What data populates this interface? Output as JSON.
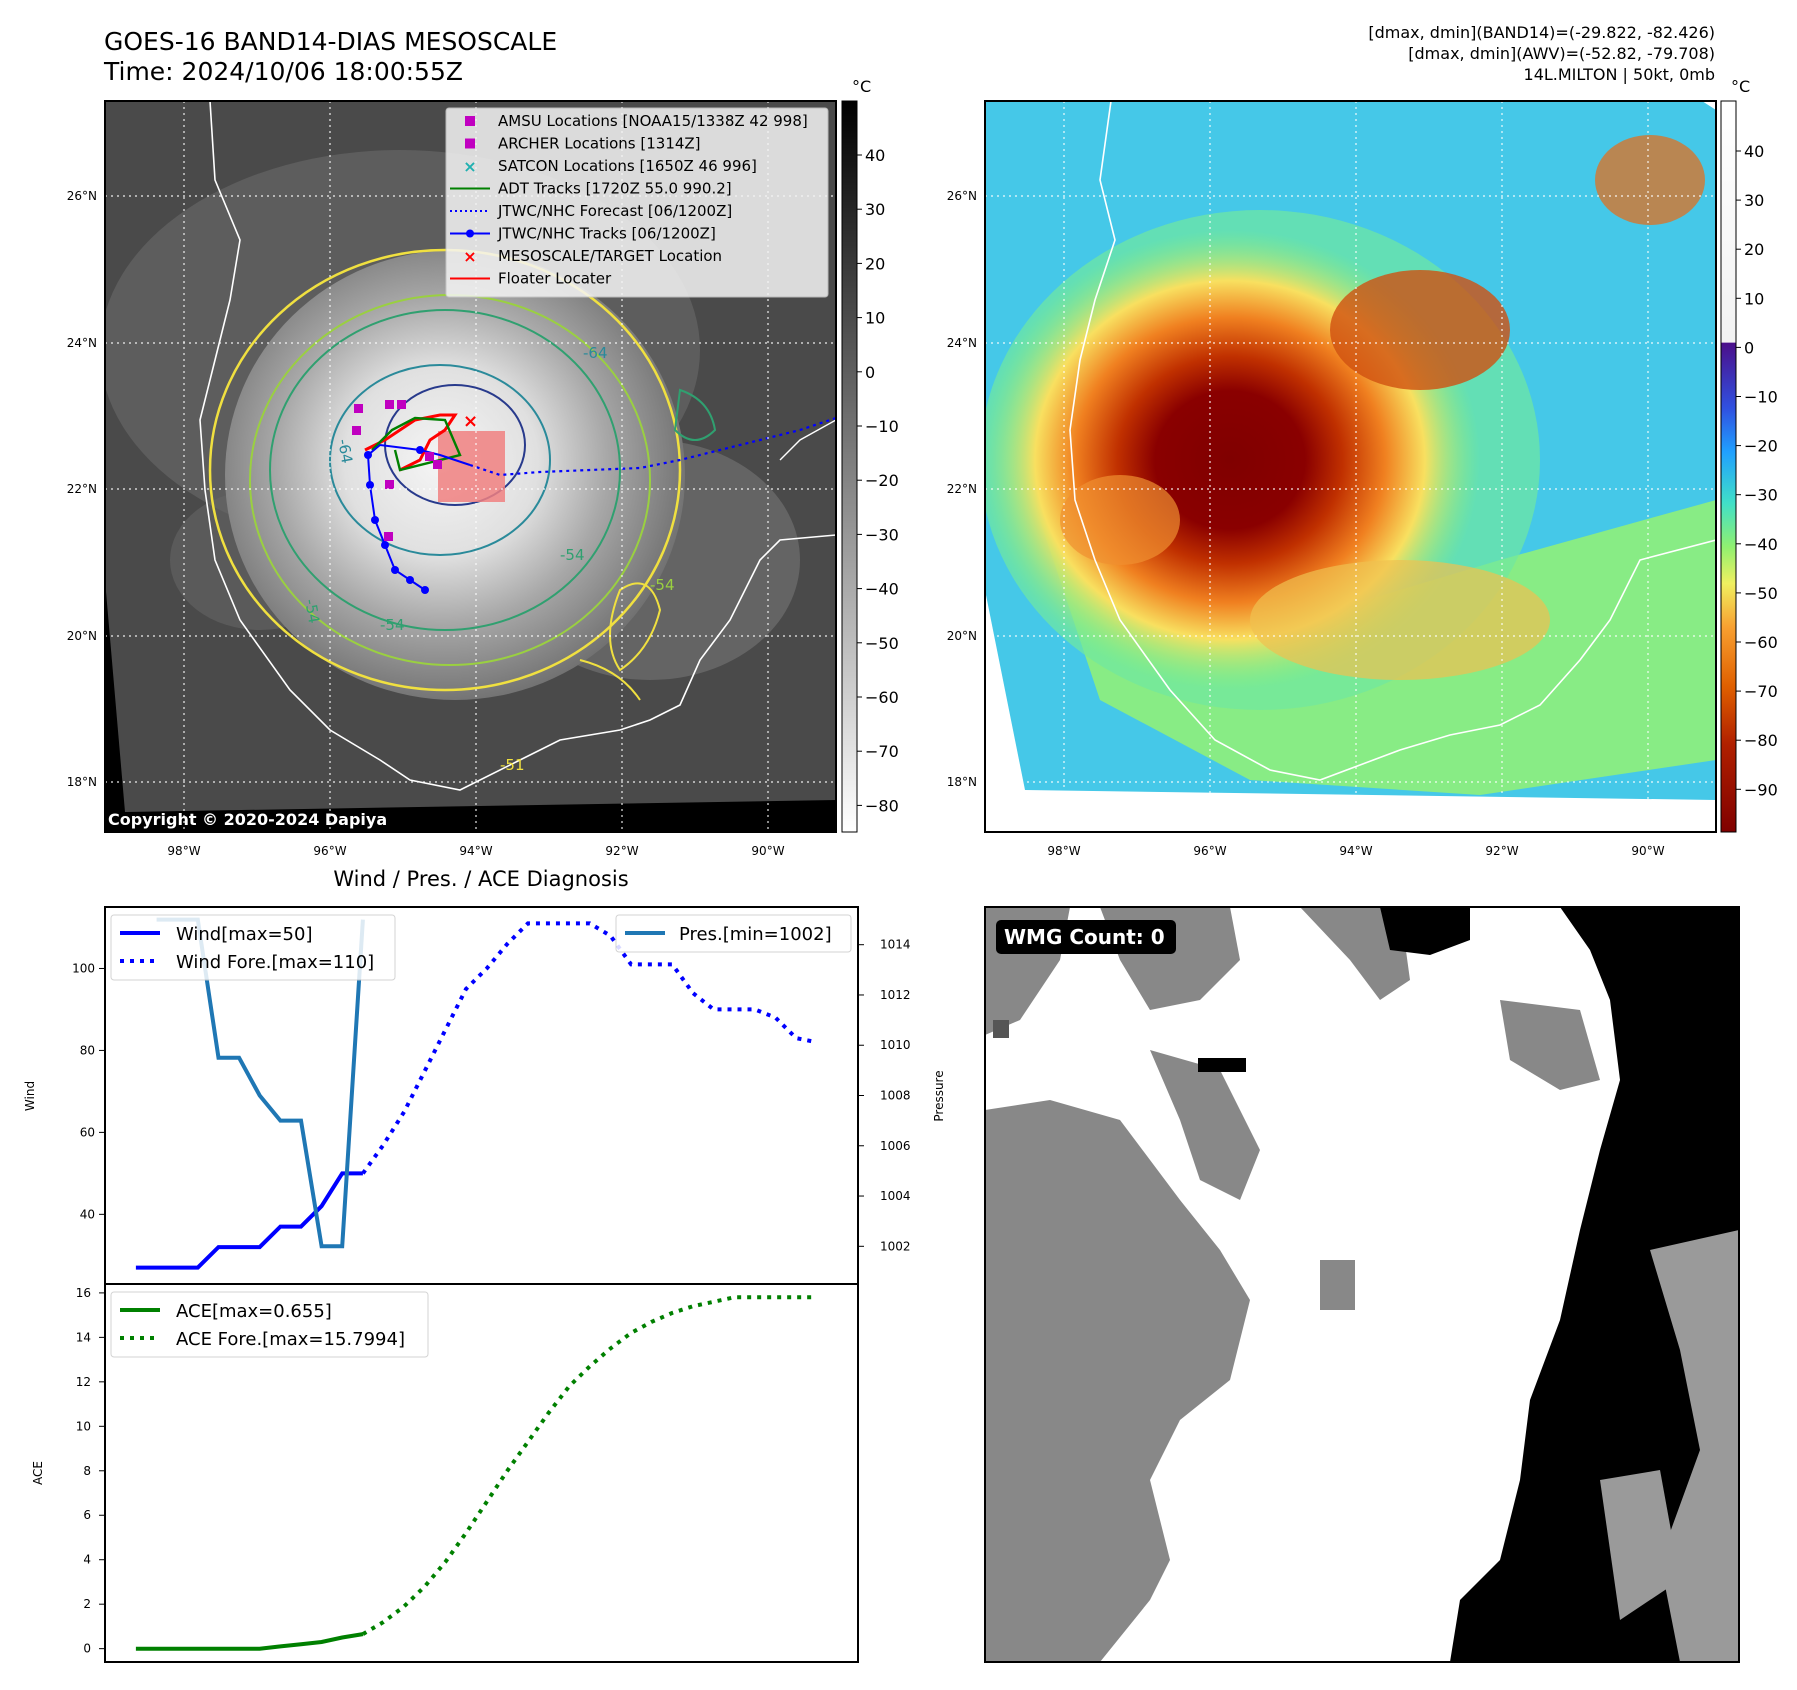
{
  "header": {
    "title_line1": "GOES-16 BAND14-DIAS MESOSCALE",
    "title_line2": "Time: 2024/10/06 18:00:55Z",
    "stats_line1": "[dmax, dmin](BAND14)=(-29.822, -82.426)",
    "stats_line2": "[dmax, dmin](AWV)=(-52.82, -79.708)",
    "stats_line3": "14L.MILTON | 50kt, 0mb"
  },
  "map_axes": {
    "lon_labels": [
      "98°W",
      "96°W",
      "94°W",
      "92°W",
      "90°W"
    ],
    "lat_labels": [
      "26°N",
      "24°N",
      "22°N",
      "20°N",
      "18°N"
    ],
    "copyright": "Copyright © 2020-2024 Dapiya",
    "contour_labels": [
      "-64",
      "-64",
      "-54",
      "-54",
      "-54",
      "-54",
      "-51"
    ]
  },
  "colorbar_left": {
    "unit": "°C",
    "ticks": [
      "40",
      "30",
      "20",
      "10",
      "0",
      "−10",
      "−20",
      "−30",
      "−40",
      "−50",
      "−60",
      "−70",
      "−80"
    ]
  },
  "colorbar_right": {
    "unit": "°C",
    "ticks": [
      "40",
      "30",
      "20",
      "10",
      "0",
      "−10",
      "−20",
      "−30",
      "−40",
      "−50",
      "−60",
      "−70",
      "−80",
      "−90"
    ]
  },
  "legend_map": {
    "items": [
      {
        "label": "AMSU Locations [NOAA15/1338Z 42 998]",
        "color": "#c000c0",
        "icon": "square-marker"
      },
      {
        "label": "ARCHER Locations [1314Z]",
        "color": "#c000c0",
        "icon": "square-marker"
      },
      {
        "label": "SATCON Locations [1650Z 46 996]",
        "color": "#20b0b0",
        "icon": "x-marker"
      },
      {
        "label": "ADT Tracks [1720Z 55.0 990.2]",
        "color": "#008000",
        "icon": "line"
      },
      {
        "label": "JTWC/NHC Forecast [06/1200Z]",
        "color": "#0000ff",
        "icon": "dotted-line"
      },
      {
        "label": "JTWC/NHC Tracks [06/1200Z]",
        "color": "#0000ff",
        "icon": "line-dot"
      },
      {
        "label": "MESOSCALE/TARGET Location",
        "color": "#ff0000",
        "icon": "x-marker"
      },
      {
        "label": "Floater Locater",
        "color": "#ff0000",
        "icon": "line"
      }
    ]
  },
  "wmg": {
    "label": "WMG Count: 0"
  },
  "chart_data": [
    {
      "type": "line",
      "title": "Wind / Pres. / ACE Diagnosis",
      "ylabel": "Wind",
      "y2label": "Pressure",
      "ylim": [
        23,
        115
      ],
      "y2lim": [
        1000.5,
        1015.5
      ],
      "yticks": [
        "40",
        "60",
        "80",
        "100"
      ],
      "y2ticks": [
        "1002",
        "1004",
        "1006",
        "1008",
        "1010",
        "1012",
        "1014"
      ],
      "series": [
        {
          "name": "Wind[max=50]",
          "color": "#0000ff",
          "style": "solid",
          "x": [
            0,
            1,
            2,
            3,
            4,
            5,
            6,
            7,
            8,
            9,
            10,
            11
          ],
          "values": [
            27,
            27,
            27,
            27,
            32,
            32,
            32,
            37,
            37,
            42,
            50,
            50
          ]
        },
        {
          "name": "Wind Fore.[max=110]",
          "color": "#0000ff",
          "style": "dotted",
          "x": [
            11,
            12,
            13,
            14,
            15,
            16,
            17,
            18,
            19,
            20,
            21,
            22,
            23,
            24,
            25,
            26,
            27,
            28,
            29,
            30,
            31,
            32,
            33
          ],
          "values": [
            50,
            57,
            65,
            75,
            85,
            95,
            100,
            106,
            111,
            111,
            111,
            111,
            108,
            101,
            101,
            101,
            94,
            90,
            90,
            90,
            88,
            83,
            82
          ]
        },
        {
          "name": "Pres.[min=1002]",
          "color": "#1f77b4",
          "style": "solid",
          "axis": "right",
          "x": [
            1,
            2,
            3,
            4,
            5,
            6,
            7,
            8,
            9,
            10,
            11
          ],
          "values": [
            1015,
            1015,
            1015,
            1009.5,
            1009.5,
            1008,
            1007,
            1007,
            1002,
            1002,
            1015
          ]
        }
      ]
    },
    {
      "type": "line",
      "ylabel": "ACE",
      "ylim": [
        -0.6,
        16.4
      ],
      "yticks": [
        "0",
        "2",
        "4",
        "6",
        "8",
        "10",
        "12",
        "14",
        "16"
      ],
      "series": [
        {
          "name": "ACE[max=0.655]",
          "color": "#008000",
          "style": "solid",
          "x": [
            0,
            1,
            2,
            3,
            4,
            5,
            6,
            7,
            8,
            9,
            10,
            11
          ],
          "values": [
            0,
            0,
            0,
            0,
            0,
            0,
            0,
            0.1,
            0.2,
            0.3,
            0.5,
            0.655
          ]
        },
        {
          "name": "ACE Fore.[max=15.7994]",
          "color": "#008000",
          "style": "dotted",
          "x": [
            11,
            12,
            13,
            14,
            15,
            16,
            17,
            18,
            19,
            20,
            21,
            22,
            23,
            24,
            25,
            26,
            27,
            28,
            29,
            30,
            31,
            32,
            33
          ],
          "values": [
            0.655,
            1.2,
            1.9,
            2.8,
            3.9,
            5.2,
            6.6,
            8.0,
            9.3,
            10.6,
            11.8,
            12.7,
            13.5,
            14.2,
            14.7,
            15.1,
            15.4,
            15.6,
            15.8,
            15.8,
            15.8,
            15.8,
            15.8
          ]
        }
      ]
    }
  ]
}
